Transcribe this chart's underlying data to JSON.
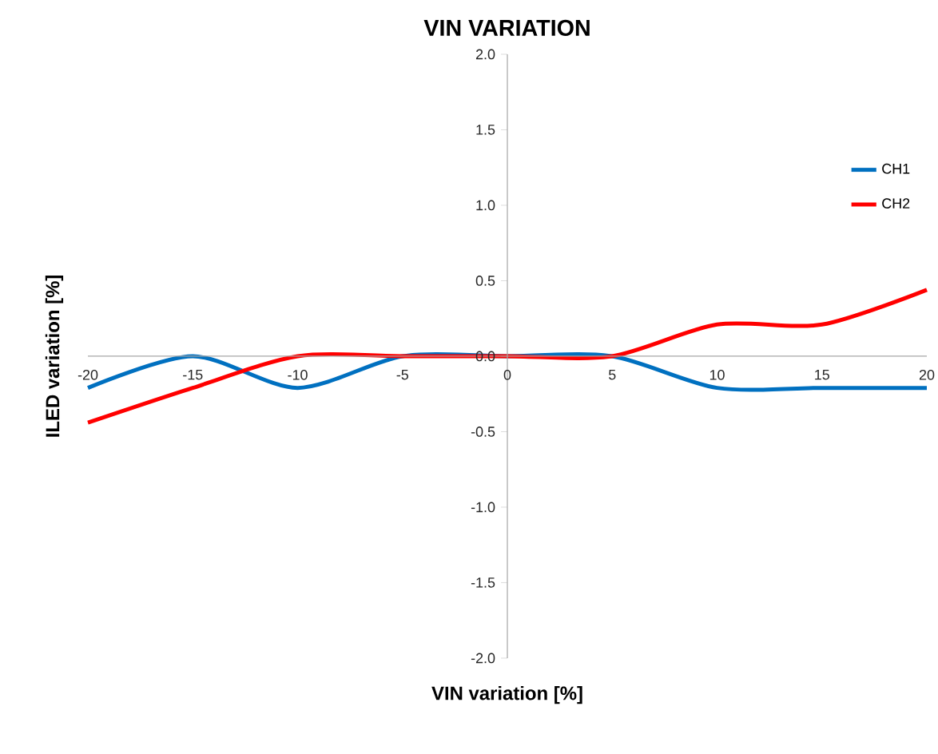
{
  "chart_data": {
    "type": "line",
    "title": "VIN VARIATION",
    "xlabel": "VIN variation [%]",
    "ylabel": "ILED variation [%]",
    "x": [
      -20,
      -15,
      -10,
      -5,
      0,
      5,
      10,
      15,
      20
    ],
    "series": [
      {
        "name": "CH1",
        "color": "#0070c0",
        "values": [
          -0.21,
          0,
          -0.21,
          0,
          0,
          0,
          -0.21,
          -0.21,
          -0.21
        ]
      },
      {
        "name": "CH2",
        "color": "#ff0000",
        "values": [
          -0.44,
          -0.21,
          0,
          0,
          0,
          0,
          0.21,
          0.21,
          0.44
        ]
      }
    ],
    "xlim": [
      -20,
      20
    ],
    "ylim": [
      -2,
      2
    ],
    "xticks": [
      -20,
      -15,
      -10,
      -5,
      0,
      5,
      10,
      15,
      20
    ],
    "yticks": [
      {
        "value": -2,
        "label": "-2.0"
      },
      {
        "value": -1.5,
        "label": "-1.5"
      },
      {
        "value": -1,
        "label": "-1.0"
      },
      {
        "value": -0.5,
        "label": "-0.5"
      },
      {
        "value": 0,
        "label": "0.0"
      },
      {
        "value": 0.5,
        "label": "0.5"
      },
      {
        "value": 1,
        "label": "1.0"
      },
      {
        "value": 1.5,
        "label": "1.5"
      },
      {
        "value": 2,
        "label": "2.0"
      }
    ],
    "legend": "right",
    "marker": "none",
    "line_style": "solid"
  }
}
